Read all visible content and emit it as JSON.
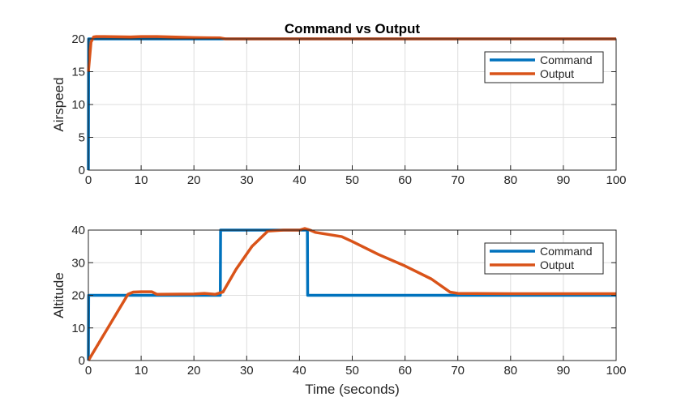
{
  "chart_data": [
    {
      "type": "line",
      "title": "Command vs Output",
      "xlabel": "",
      "ylabel": "Airspeed",
      "xlim": [
        0,
        100
      ],
      "ylim": [
        0,
        20
      ],
      "xticks": [
        0,
        10,
        20,
        30,
        40,
        50,
        60,
        70,
        80,
        90,
        100
      ],
      "yticks": [
        0,
        5,
        10,
        15,
        20
      ],
      "grid": true,
      "legend": "top-right",
      "series": [
        {
          "name": "Command",
          "color": "#0072BD",
          "x": [
            0,
            0.05,
            100
          ],
          "y": [
            0,
            20,
            20
          ]
        },
        {
          "name": "Output",
          "color": "#D95319",
          "x": [
            0,
            0.5,
            1,
            1.5,
            3,
            8,
            10,
            13,
            20,
            25,
            26,
            30,
            40,
            60,
            80,
            100
          ],
          "y": [
            15,
            19.5,
            20.3,
            20.35,
            20.35,
            20.3,
            20.35,
            20.35,
            20.2,
            20.15,
            20.0,
            20.0,
            20.0,
            20.0,
            20.0,
            20.0
          ]
        }
      ]
    },
    {
      "type": "line",
      "title": "",
      "xlabel": "Time (seconds)",
      "ylabel": "Altitude",
      "xlim": [
        0,
        100
      ],
      "ylim": [
        0,
        40
      ],
      "xticks": [
        0,
        10,
        20,
        30,
        40,
        50,
        60,
        70,
        80,
        90,
        100
      ],
      "yticks": [
        0,
        10,
        20,
        30,
        40
      ],
      "grid": true,
      "legend": "top-right",
      "series": [
        {
          "name": "Command",
          "color": "#0072BD",
          "x": [
            0,
            0.05,
            25,
            25.05,
            41.5,
            41.55,
            100
          ],
          "y": [
            0,
            20,
            20,
            40,
            40,
            20,
            20
          ]
        },
        {
          "name": "Output",
          "color": "#D95319",
          "x": [
            0,
            7.5,
            8.5,
            10,
            12,
            13,
            20,
            22,
            24,
            25.5,
            28,
            31,
            34,
            37,
            40,
            41,
            42,
            43,
            48,
            50,
            55,
            60,
            65,
            68.5,
            70,
            80,
            100
          ],
          "y": [
            0,
            20.3,
            21.0,
            21.1,
            21.1,
            20.3,
            20.4,
            20.6,
            20.3,
            21.0,
            28,
            35,
            39.7,
            40.0,
            40.0,
            40.5,
            40.0,
            39.3,
            38.0,
            36.5,
            32.5,
            29,
            25,
            21.0,
            20.6,
            20.5,
            20.5
          ]
        }
      ]
    }
  ]
}
